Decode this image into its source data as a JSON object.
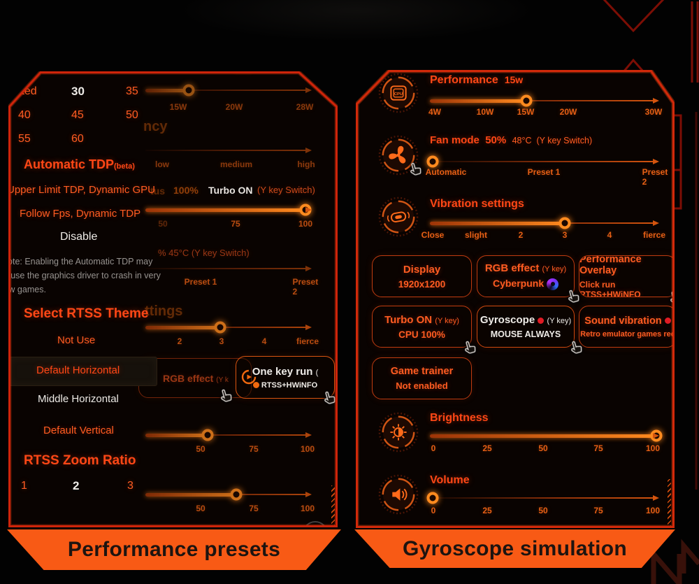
{
  "colors": {
    "accent": "#f0690f",
    "title_red": "#ff4716",
    "border_red": "#c21708",
    "banner_orange": "#f85a15",
    "selected_white": "#eeebe7",
    "note_gray": "#979390",
    "alert_red": "#e01b24"
  },
  "left_panel": {
    "banner": "Performance presets",
    "menu": {
      "tdp_rows": [
        [
          "nited",
          "30",
          "35"
        ],
        [
          "40",
          "45",
          "50"
        ],
        [
          "55",
          "60"
        ]
      ],
      "selected_tdp": "30",
      "auto_tdp_title": "Automatic TDP",
      "auto_tdp_beta": "(beta)",
      "items": [
        "Upper Limit TDP, Dynamic GPU",
        "Follow Fps, Dynamic TDP",
        "Disable"
      ],
      "note_lines": [
        "Note: Enabling the Automatic TDP may",
        "cause the graphics driver to crash in very",
        "few games."
      ],
      "theme_title": "Select RTSS Theme",
      "themes": [
        "Not Use",
        "Default Horizontal",
        "Middle Horizontal",
        "Default Vertical"
      ],
      "selected_theme": "Default Horizontal",
      "zoom_title": "RTSS Zoom Ratio",
      "zoom_values": [
        "1",
        "2",
        "3"
      ],
      "selected_zoom": "2"
    },
    "bg": {
      "top_tick": "15W",
      "s1": [
        "15W",
        "20W",
        "28W"
      ],
      "frag_freq": "ncy",
      "s2": [
        "low",
        "medium",
        "high"
      ],
      "frag_status": "tus",
      "pct": "100%",
      "turbo": "Turbo ON",
      "turbo_hint": "(Y key Switch)",
      "s3": [
        "50",
        "75",
        "100"
      ],
      "frag_temp": "% 45°C (Y key Switch)",
      "s4": [
        "Preset 1",
        "Preset 2"
      ],
      "frag_settings": "ttings",
      "s5": [
        "2",
        "3",
        "4",
        "fierce"
      ],
      "rgb_btn": {
        "title": "RGB effect",
        "hint": "(Y k"
      },
      "onekey": {
        "title": "One key run",
        "paren": "(",
        "sub": "RTSS+HWiNFO"
      },
      "s6": [
        "50",
        "75",
        "100"
      ],
      "s7": [
        "50",
        "75",
        "100"
      ]
    }
  },
  "right_panel": {
    "banner": "Gyroscope simulation",
    "performance": {
      "title": "Performance",
      "value": "15w",
      "ticks": [
        "4W",
        "10W",
        "15W",
        "20W",
        "30W"
      ]
    },
    "fan": {
      "title": "Fan mode",
      "value": "50%",
      "temp": "48°C",
      "hint": "(Y key Switch)",
      "ticks": [
        "Automatic",
        "Preset 1",
        "Preset 2"
      ]
    },
    "vibration": {
      "title": "Vibration settings",
      "ticks": [
        "Close",
        "slight",
        "2",
        "3",
        "4",
        "fierce"
      ]
    },
    "buttons": {
      "display": {
        "title": "Display",
        "sub": "1920x1200"
      },
      "rgb": {
        "title": "RGB effect",
        "hint": "(Y key)",
        "sub": "Cyberpunk"
      },
      "overlay": {
        "title": "Performance Overlay",
        "sub": "Click run RTSS+HWiNFO"
      },
      "turbo": {
        "title": "Turbo ON",
        "hint": "(Y key)",
        "sub": "CPU 100%"
      },
      "gyro": {
        "title": "Gyroscope",
        "hint": "(Y key)",
        "sub": "MOUSE ALWAYS"
      },
      "sound": {
        "title": "Sound vibration",
        "sub": "Retro emulator games rec"
      },
      "trainer": {
        "title": "Game trainer",
        "sub": "Not enabled"
      }
    },
    "brightness": {
      "title": "Brightness",
      "ticks": [
        "0",
        "25",
        "50",
        "75",
        "100"
      ]
    },
    "volume": {
      "title": "Volume",
      "ticks": [
        "0",
        "25",
        "50",
        "75",
        "100"
      ]
    }
  }
}
